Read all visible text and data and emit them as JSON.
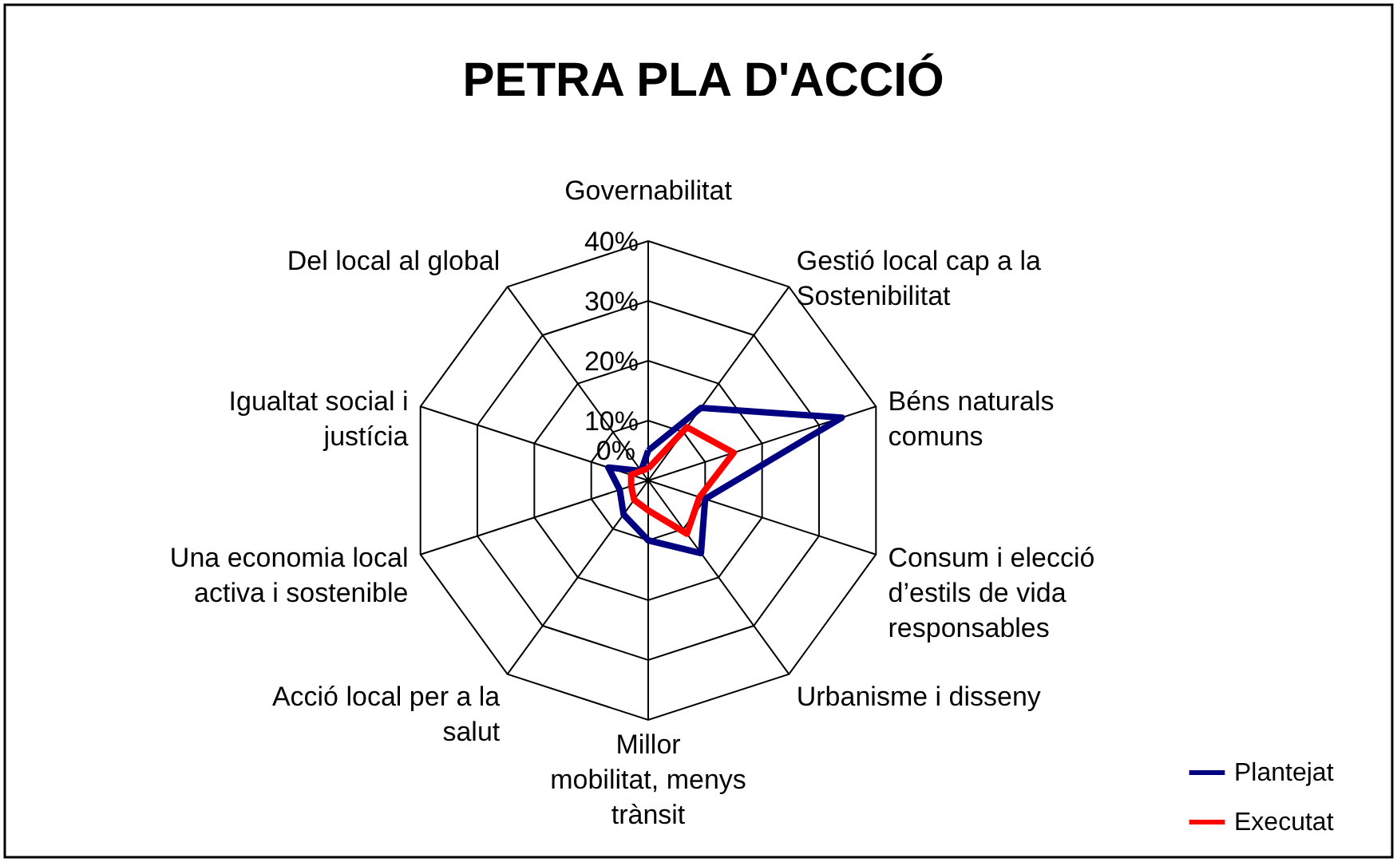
{
  "chart_data": {
    "type": "radar",
    "title": "PETRA PLA D'ACCIÓ",
    "categories": [
      "Governabilitat",
      "Gestió local cap a la\nSostenibilitat",
      "Béns naturals\ncomuns",
      "Consum i elecció\nd’estils de vida\nresponsables",
      "Urbanisme i disseny",
      "Millor\nmobilitat, menys\ntrànsit",
      "Acció local per a la\nsalut",
      "Una economia local\nactiva i sostenible",
      "Igualtat social i\njustícia",
      "Del local al global"
    ],
    "series": [
      {
        "name": "Plantejat",
        "color": "#000080",
        "values": [
          5,
          15,
          34,
          10,
          15,
          10,
          7,
          5,
          7,
          2
        ]
      },
      {
        "name": "Executat",
        "color": "#ff0000",
        "values": [
          2,
          11,
          15,
          9,
          11,
          5,
          4,
          3,
          3,
          2
        ]
      }
    ],
    "ylim": [
      0,
      40
    ],
    "yticks": [
      {
        "value": 0,
        "label": "0%"
      },
      {
        "value": 10,
        "label": "10%"
      },
      {
        "value": 20,
        "label": "20%"
      },
      {
        "value": 30,
        "label": "30%"
      },
      {
        "value": 40,
        "label": "40%"
      }
    ],
    "legend": "bottom right",
    "grid": true
  }
}
